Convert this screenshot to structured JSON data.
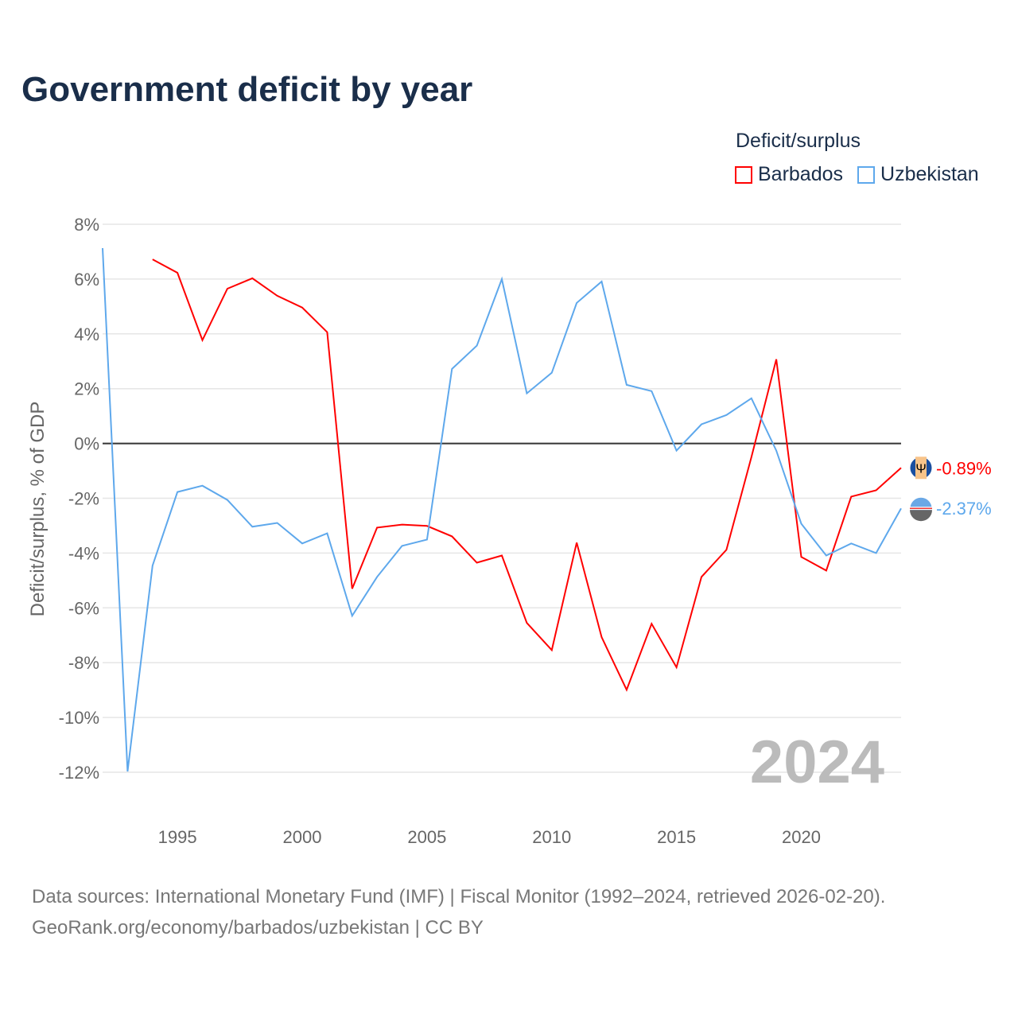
{
  "chart_data": {
    "type": "line",
    "title": "Government deficit by year",
    "xlabel": "",
    "ylabel": "Deficit/surplus, % of GDP",
    "xlim": [
      1992,
      2024
    ],
    "ylim": [
      -12,
      8
    ],
    "yticks": [
      8,
      6,
      4,
      2,
      0,
      -2,
      -4,
      -6,
      -8,
      -10,
      -12
    ],
    "ytick_labels": [
      "8%",
      "6%",
      "4%",
      "2%",
      "0%",
      "-2%",
      "-4%",
      "-6%",
      "-8%",
      "-10%",
      "-12%"
    ],
    "xticks": [
      1995,
      2000,
      2005,
      2010,
      2015,
      2020
    ],
    "xtick_labels": [
      "1995",
      "2000",
      "2005",
      "2010",
      "2015",
      "2020"
    ],
    "grid": true,
    "legend_title": "Deficit/surplus",
    "legend_placement": "top-right",
    "year_watermark": "2024",
    "series": [
      {
        "name": "Barbados",
        "color": "#ff0000",
        "end_label": "-0.89%",
        "x": [
          1994,
          1995,
          1996,
          1997,
          1998,
          1999,
          2000,
          2001,
          2002,
          2003,
          2004,
          2005,
          2006,
          2007,
          2008,
          2009,
          2010,
          2011,
          2012,
          2013,
          2014,
          2015,
          2016,
          2017,
          2018,
          2019,
          2020,
          2021,
          2022,
          2023,
          2024
        ],
        "values": [
          6.72,
          6.23,
          3.77,
          5.65,
          6.03,
          5.39,
          4.96,
          4.06,
          -5.3,
          -3.07,
          -2.96,
          -3.01,
          -3.39,
          -4.35,
          -4.09,
          -6.55,
          -7.54,
          -3.62,
          -7.07,
          -8.99,
          -6.58,
          -8.17,
          -4.87,
          -3.88,
          -0.5,
          3.07,
          -4.14,
          -4.64,
          -1.94,
          -1.71,
          -0.89
        ]
      },
      {
        "name": "Uzbekistan",
        "color": "#5ea8ec",
        "end_label": "-2.37%",
        "x": [
          1992,
          1993,
          1994,
          1995,
          1996,
          1997,
          1998,
          1999,
          2000,
          2001,
          2002,
          2003,
          2004,
          2005,
          2006,
          2007,
          2008,
          2009,
          2010,
          2011,
          2012,
          2013,
          2014,
          2015,
          2016,
          2017,
          2018,
          2019,
          2020,
          2021,
          2022,
          2023,
          2024
        ],
        "values": [
          7.13,
          -11.97,
          -4.46,
          -1.77,
          -1.54,
          -2.06,
          -3.04,
          -2.9,
          -3.65,
          -3.28,
          -6.29,
          -4.87,
          -3.74,
          -3.51,
          2.72,
          3.57,
          6.0,
          1.83,
          2.58,
          5.13,
          5.91,
          2.14,
          1.91,
          -0.26,
          0.7,
          1.04,
          1.65,
          -0.26,
          -2.93,
          -4.09,
          -3.65,
          -4.0,
          -2.37
        ]
      }
    ]
  },
  "footer": {
    "source": "Data sources: International Monetary Fund (IMF) | Fiscal Monitor (1992–2024, retrieved 2026-02-20).",
    "url": "GeoRank.org/economy/barbados/uzbekistan | CC BY"
  }
}
